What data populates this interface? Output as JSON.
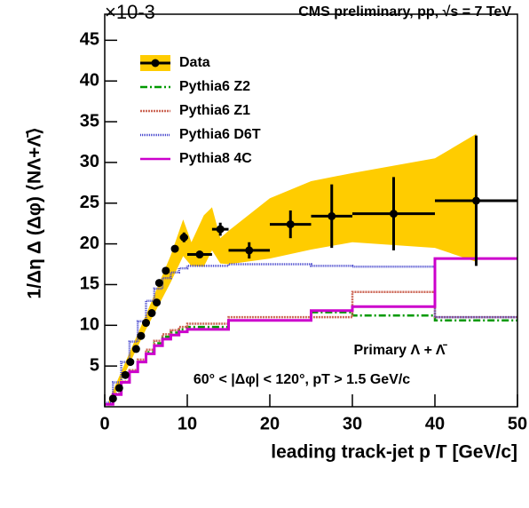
{
  "chart_data": {
    "type": "physics",
    "title": "CMS preliminary, pp, √s = 7 TeV",
    "multiplier": "×10-3",
    "x_label": "leading track-jet p T [GeV/c]",
    "y_label": "1/Δη Δ (Δφ) ⟨NΛ+Λ̄⟩",
    "annotations": [
      "Primary Λ + Λ̄",
      "60° < |Δφ| < 120°, pT > 1.5 GeV/c"
    ],
    "xlim": [
      0,
      50
    ],
    "ylim": [
      0,
      48.2
    ],
    "xticks": [
      0,
      10,
      20,
      30,
      40,
      50
    ],
    "yticks": [
      5,
      10,
      15,
      20,
      25,
      30,
      35,
      40,
      45
    ],
    "data": {
      "name": "Data",
      "color": "#000000",
      "band_color": "#ffcc00",
      "x": [
        1,
        1.75,
        2.5,
        3.1,
        3.8,
        4.4,
        5,
        5.7,
        6.3,
        6.6,
        7.4,
        8.5,
        9.6,
        11.5,
        14,
        17.5,
        22.5,
        27.5,
        35,
        45
      ],
      "values": [
        1.0,
        2.3,
        3.9,
        5.5,
        7.1,
        8.7,
        10.3,
        11.5,
        12.8,
        15.2,
        16.7,
        19.4,
        20.8,
        18.7,
        21.8,
        19.2,
        22.4,
        23.4,
        23.7,
        25.3
      ],
      "xerr": [
        0,
        0,
        0,
        0,
        0,
        0,
        0,
        0,
        0,
        0,
        0,
        0,
        0.5,
        1.5,
        1,
        2.5,
        2.5,
        2.5,
        5,
        5
      ],
      "yerr": [
        0.3,
        0.3,
        0.3,
        0.3,
        0.3,
        0.3,
        0.3,
        0.3,
        0.3,
        0.3,
        0.3,
        0.4,
        0.6,
        0.4,
        0.8,
        1,
        1.7,
        3.9,
        4.5,
        8
      ],
      "band_x": [
        0.5,
        5,
        8,
        9.5,
        10.5,
        12,
        13,
        14,
        15,
        20,
        25,
        30,
        40,
        45
      ],
      "band_upper": [
        0.8,
        11.3,
        18.6,
        23.0,
        20.2,
        23.5,
        24.5,
        20.7,
        21.6,
        25.6,
        27.7,
        28.7,
        30.5,
        33.5
      ],
      "band_lower": [
        0,
        9.5,
        15.3,
        18.5,
        17.3,
        17.2,
        19.2,
        17.6,
        17.5,
        18.2,
        19.3,
        20.2,
        19.5,
        17.8
      ]
    },
    "edges": [
      0,
      1,
      2,
      3,
      4,
      5,
      6,
      7,
      8,
      9,
      10,
      15,
      25,
      30,
      40,
      50
    ],
    "series": [
      {
        "name": "Pythia6 Z2",
        "color": "#009900",
        "dash": "8,3,2,3",
        "values": [
          0.3,
          1.5,
          3,
          4.3,
          5.5,
          6.7,
          7.8,
          8.6,
          9.1,
          9.5,
          9.8,
          10.6,
          11.6,
          11.2,
          10.6
        ]
      },
      {
        "name": "Pythia6 Z1",
        "color": "#cc6655",
        "dash": "2,1",
        "values": [
          0.3,
          1.6,
          3.1,
          4.5,
          5.8,
          7,
          8.1,
          8.9,
          9.4,
          9.8,
          10.2,
          11.0,
          11.0,
          14.1,
          11.0
        ]
      },
      {
        "name": "Pythia6 D6T",
        "color": "#4444cc",
        "dash": "1,1",
        "values": [
          0.5,
          3,
          5.5,
          8,
          10.5,
          13,
          14.5,
          15.8,
          16.5,
          17,
          17.3,
          17.5,
          17.3,
          17.2,
          11.0
        ]
      },
      {
        "name": "Pythia8 4C",
        "color": "#cc00cc",
        "dash": "",
        "values": [
          0.3,
          1.5,
          3,
          4.3,
          5.5,
          6.5,
          7.5,
          8.3,
          8.8,
          9.2,
          9.5,
          10.6,
          11.8,
          12.3,
          18.2
        ]
      }
    ]
  }
}
